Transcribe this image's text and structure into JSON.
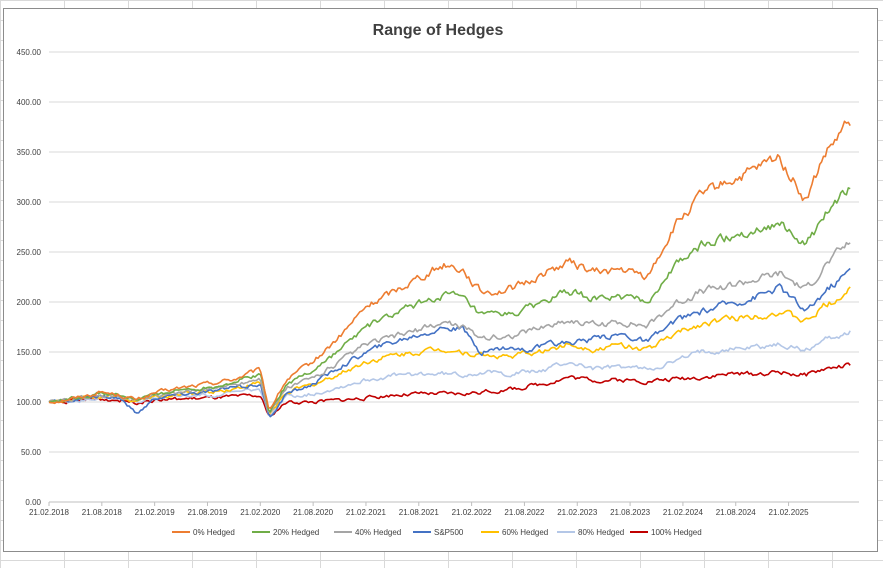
{
  "chart_data": {
    "type": "line",
    "title": "Range of Hedges",
    "xlabel": "",
    "ylabel": "",
    "ylim": [
      0,
      450
    ],
    "y_ticks": [
      "0.00",
      "50.00",
      "100.00",
      "150.00",
      "200.00",
      "250.00",
      "300.00",
      "350.00",
      "400.00",
      "450.00"
    ],
    "x_ticks": [
      "21.02.2018",
      "21.08.2018",
      "21.02.2019",
      "21.08.2019",
      "21.02.2020",
      "21.08.2020",
      "21.02.2021",
      "21.08.2021",
      "21.02.2022",
      "21.08.2022",
      "21.02.2023",
      "21.08.2023",
      "21.02.2024",
      "21.08.2024",
      "21.02.2025"
    ],
    "grid": "horizontal",
    "legend_position": "bottom",
    "x_dates": [
      "2018-02",
      "2018-05",
      "2018-08",
      "2018-10",
      "2018-12",
      "2019-02",
      "2019-05",
      "2019-08",
      "2019-11",
      "2020-02",
      "2020-03",
      "2020-05",
      "2020-08",
      "2020-11",
      "2021-02",
      "2021-05",
      "2021-08",
      "2021-11",
      "2022-01",
      "2022-03",
      "2022-06",
      "2022-08",
      "2022-10",
      "2023-01",
      "2023-04",
      "2023-07",
      "2023-10",
      "2024-01",
      "2024-04",
      "2024-07",
      "2024-10",
      "2025-01",
      "2025-04",
      "2025-06",
      "2025-09"
    ],
    "series": [
      {
        "name": "0% Hedged",
        "color": "#ED7D31",
        "values": [
          100,
          104,
          110,
          107,
          102,
          109,
          114,
          118,
          123,
          132,
          92,
          122,
          140,
          165,
          195,
          210,
          225,
          238,
          233,
          210,
          212,
          218,
          228,
          240,
          230,
          232,
          225,
          275,
          305,
          320,
          330,
          345,
          300,
          345,
          380
        ]
      },
      {
        "name": "20% Hedged",
        "color": "#70AD47",
        "values": [
          100,
          104,
          109,
          106,
          102,
          108,
          112,
          115,
          120,
          128,
          90,
          118,
          132,
          152,
          175,
          187,
          198,
          208,
          203,
          186,
          187,
          192,
          200,
          210,
          203,
          205,
          200,
          235,
          256,
          265,
          272,
          280,
          255,
          285,
          315
        ]
      },
      {
        "name": "40% Hedged",
        "color": "#A5A5A5",
        "values": [
          100,
          103,
          107,
          105,
          102,
          107,
          110,
          113,
          117,
          124,
          88,
          114,
          124,
          140,
          157,
          165,
          172,
          180,
          175,
          165,
          165,
          170,
          175,
          182,
          177,
          180,
          176,
          198,
          210,
          216,
          222,
          228,
          212,
          235,
          260
        ]
      },
      {
        "name": "S&P500",
        "color": "#4472C4",
        "values": [
          100,
          102,
          106,
          104,
          88,
          104,
          108,
          110,
          114,
          118,
          84,
          108,
          118,
          135,
          150,
          160,
          168,
          175,
          172,
          150,
          155,
          152,
          155,
          160,
          163,
          168,
          160,
          180,
          190,
          198,
          205,
          215,
          190,
          210,
          232
        ]
      },
      {
        "name": "60% Hedged",
        "color": "#FFC000",
        "values": [
          100,
          102,
          106,
          104,
          101,
          105,
          108,
          110,
          113,
          119,
          87,
          110,
          117,
          128,
          140,
          146,
          150,
          153,
          150,
          147,
          145,
          148,
          150,
          158,
          153,
          157,
          153,
          167,
          178,
          183,
          186,
          190,
          180,
          195,
          212
        ]
      },
      {
        "name": "80% Hedged",
        "color": "#B4C7E7",
        "values": [
          100,
          101,
          105,
          103,
          101,
          104,
          106,
          107,
          109,
          113,
          86,
          106,
          108,
          115,
          122,
          126,
          128,
          128,
          127,
          130,
          128,
          130,
          131,
          140,
          133,
          135,
          133,
          140,
          150,
          153,
          155,
          157,
          152,
          162,
          170
        ]
      },
      {
        "name": "100% Hedged",
        "color": "#C00000",
        "values": [
          100,
          101,
          103,
          102,
          100,
          102,
          103,
          104,
          105,
          106,
          85,
          100,
          100,
          102,
          104,
          107,
          108,
          108,
          108,
          110,
          112,
          115,
          118,
          125,
          122,
          122,
          121,
          123,
          125,
          128,
          128,
          130,
          127,
          133,
          137
        ]
      }
    ]
  }
}
